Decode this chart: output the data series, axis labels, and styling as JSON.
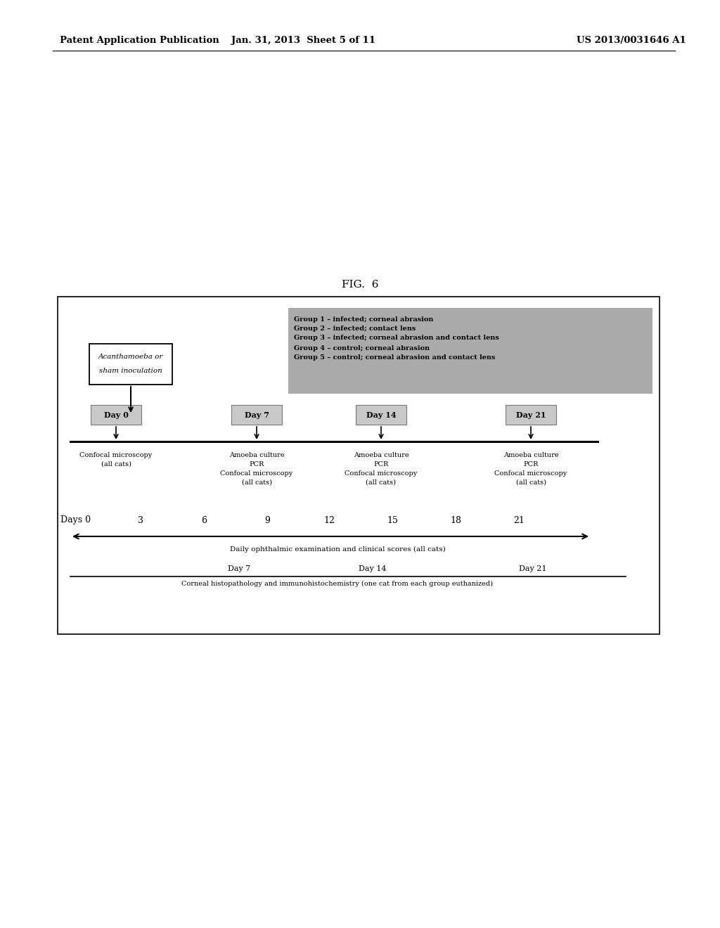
{
  "fig_title": "FIG.  6",
  "header_left": "Patent Application Publication",
  "header_mid": "Jan. 31, 2013  Sheet 5 of 11",
  "header_right": "US 2013/0031646 A1",
  "groups": [
    "Group 1 – infected; corneal abrasion",
    "Group 2 – infected; contact lens",
    "Group 3 – infected; corneal abrasion and contact lens",
    "Group 4 – control; corneal abrasion",
    "Group 5 – control; corneal abrasion and contact lens"
  ],
  "day_labels": [
    "Day 0",
    "Day 7",
    "Day 14",
    "Day 21"
  ],
  "arrow_label": "Daily ophthalmic examination and clinical scores (all cats)",
  "histo_label": "Corneal histopathology and immunohistochemistry (one cat from each group euthanized)",
  "histo_days": [
    "Day 7",
    "Day 14",
    "Day 21"
  ],
  "bg_color": "#ffffff"
}
